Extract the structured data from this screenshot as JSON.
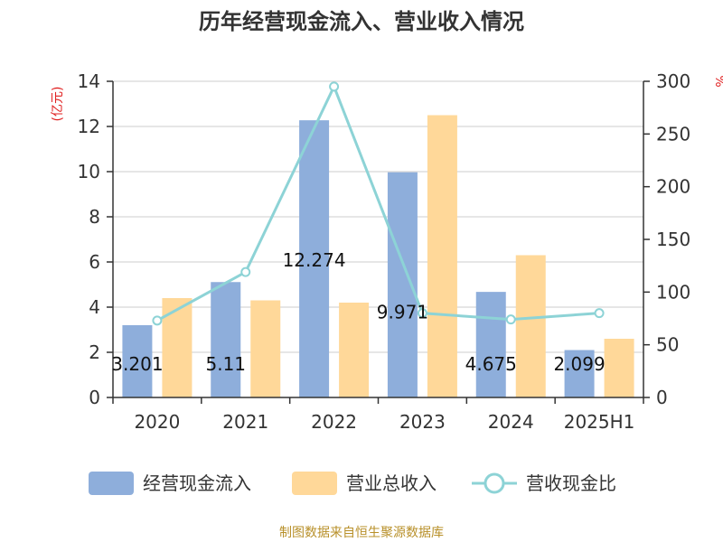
{
  "chart_data": {
    "type": "bar",
    "title": "历年经营现金流入、营业收入情况",
    "categories": [
      "2020",
      "2021",
      "2022",
      "2023",
      "2024",
      "2025H1"
    ],
    "series": [
      {
        "name": "经营现金流入",
        "type": "bar",
        "axis": "left",
        "color": "#8EAEDB",
        "values": [
          3.201,
          5.11,
          12.274,
          9.971,
          4.675,
          2.099
        ],
        "labels": [
          "3.201",
          "5.11",
          "12.274",
          "9.971",
          "4.675",
          "2.099"
        ]
      },
      {
        "name": "营业总收入",
        "type": "bar",
        "axis": "left",
        "color": "#FFD899",
        "values": [
          4.4,
          4.3,
          4.2,
          12.5,
          6.3,
          2.6
        ]
      },
      {
        "name": "营收现金比",
        "type": "line",
        "axis": "right",
        "color": "#8DD3D6",
        "values": [
          73,
          119,
          295,
          80,
          74,
          80
        ]
      }
    ],
    "y_left": {
      "label": "(亿元)",
      "min": 0,
      "max": 14,
      "ticks": [
        0,
        2,
        4,
        6,
        8,
        10,
        12,
        14
      ]
    },
    "y_right": {
      "label": "%",
      "min": 0,
      "max": 300,
      "ticks": [
        0,
        50,
        100,
        150,
        200,
        250,
        300
      ]
    },
    "grid": true,
    "legend_position": "bottom",
    "source": "制图数据来自恒生聚源数据库",
    "colors": {
      "axis_label": "#E02020",
      "source": "#B8902A",
      "grid": "#CCCCCC",
      "axis": "#333333"
    }
  }
}
